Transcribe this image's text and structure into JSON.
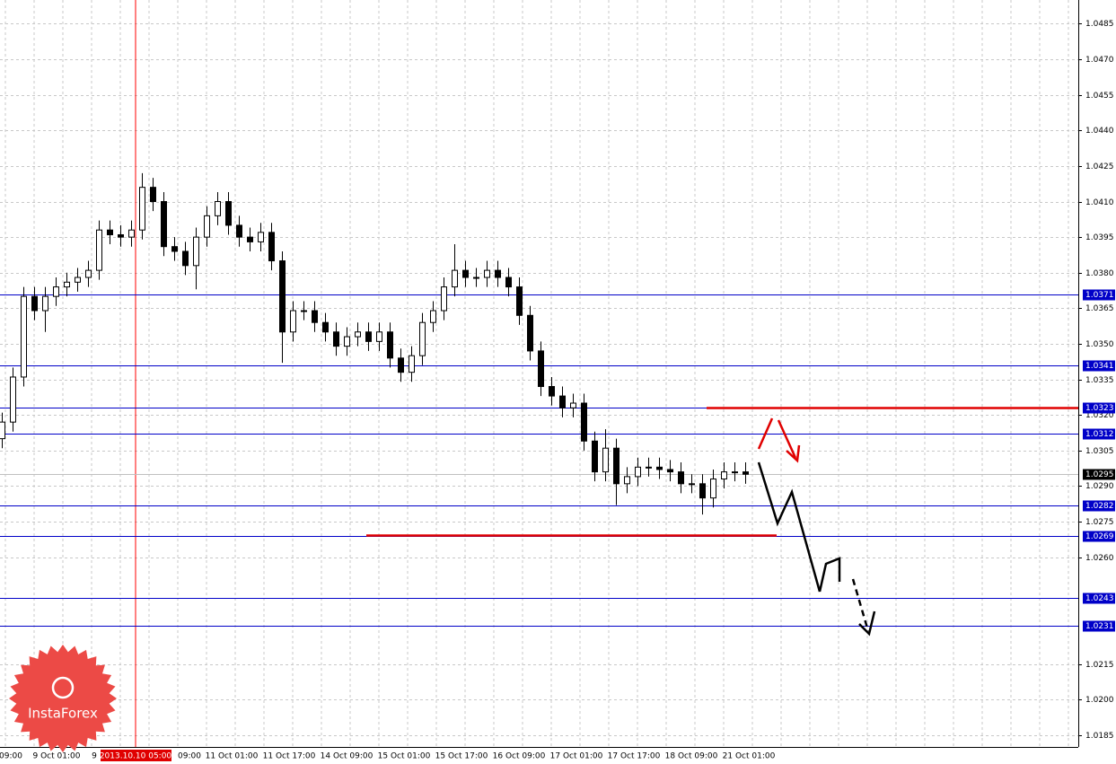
{
  "chart_data": {
    "type": "candlestick",
    "open": [
      1.031,
      1.0317,
      1.0336,
      1.037,
      1.0364,
      1.037,
      1.0374,
      1.0376,
      1.0378,
      1.0381,
      1.0398,
      1.0396,
      1.0395,
      1.0398,
      1.0416,
      1.041,
      1.0391,
      1.0389,
      1.0383,
      1.0395,
      1.0404,
      1.041,
      1.04,
      1.0395,
      1.0393,
      1.0397,
      1.0385,
      1.0355,
      1.0364,
      1.0364,
      1.0359,
      1.0355,
      1.0349,
      1.0353,
      1.0355,
      1.0351,
      1.0355,
      1.0344,
      1.0338,
      1.0345,
      1.0359,
      1.0364,
      1.0374,
      1.0381,
      1.0378,
      1.0378,
      1.0381,
      1.0378,
      1.0374,
      1.0362,
      1.0347,
      1.0332,
      1.0328,
      1.0323,
      1.0325,
      1.0309,
      1.0296,
      1.0306,
      1.0291,
      1.0294,
      1.0298,
      1.0298,
      1.0297,
      1.0296,
      1.0291,
      1.0291,
      1.0285,
      1.0293,
      1.0296,
      1.0296
    ],
    "high": [
      1.0321,
      1.034,
      1.0374,
      1.0374,
      1.0374,
      1.0378,
      1.038,
      1.0382,
      1.0385,
      1.0402,
      1.0402,
      1.04,
      1.0402,
      1.0422,
      1.042,
      1.0414,
      1.0395,
      1.0393,
      1.0399,
      1.0408,
      1.0414,
      1.0414,
      1.0404,
      1.0399,
      1.0401,
      1.0401,
      1.0389,
      1.0368,
      1.0368,
      1.0368,
      1.0363,
      1.0359,
      1.0357,
      1.0359,
      1.0359,
      1.0359,
      1.0359,
      1.0348,
      1.0349,
      1.0363,
      1.0368,
      1.0378,
      1.0392,
      1.0385,
      1.0382,
      1.0385,
      1.0385,
      1.0382,
      1.0378,
      1.0366,
      1.0351,
      1.0336,
      1.0332,
      1.0329,
      1.0329,
      1.0313,
      1.0314,
      1.031,
      1.0298,
      1.0302,
      1.0302,
      1.0302,
      1.0301,
      1.03,
      1.0295,
      1.0295,
      1.0297,
      1.03,
      1.03,
      1.03
    ],
    "low": [
      1.0306,
      1.0313,
      1.0332,
      1.036,
      1.0355,
      1.0366,
      1.037,
      1.0372,
      1.0374,
      1.0377,
      1.0392,
      1.0391,
      1.0391,
      1.0394,
      1.0406,
      1.0387,
      1.0385,
      1.0379,
      1.0373,
      1.0391,
      1.04,
      1.0396,
      1.0391,
      1.0389,
      1.0389,
      1.0381,
      1.0342,
      1.0351,
      1.036,
      1.0355,
      1.0351,
      1.0345,
      1.0345,
      1.0349,
      1.0347,
      1.0347,
      1.034,
      1.0334,
      1.0334,
      1.0341,
      1.0355,
      1.036,
      1.037,
      1.0374,
      1.0374,
      1.0374,
      1.0374,
      1.037,
      1.0358,
      1.0343,
      1.0328,
      1.0324,
      1.0319,
      1.0319,
      1.0305,
      1.0292,
      1.0292,
      1.0282,
      1.0287,
      1.029,
      1.0294,
      1.0293,
      1.0292,
      1.0287,
      1.0287,
      1.0278,
      1.0281,
      1.0289,
      1.0292,
      1.0291
    ],
    "close": [
      1.0317,
      1.0336,
      1.037,
      1.0364,
      1.037,
      1.0374,
      1.0376,
      1.0378,
      1.0381,
      1.0398,
      1.0396,
      1.0395,
      1.0398,
      1.0416,
      1.041,
      1.0391,
      1.0389,
      1.0383,
      1.0395,
      1.0404,
      1.041,
      1.04,
      1.0395,
      1.0393,
      1.0397,
      1.0385,
      1.0355,
      1.0364,
      1.0364,
      1.0359,
      1.0355,
      1.0349,
      1.0353,
      1.0355,
      1.0351,
      1.0355,
      1.0344,
      1.0338,
      1.0345,
      1.0359,
      1.0364,
      1.0374,
      1.0381,
      1.0378,
      1.0378,
      1.0381,
      1.0378,
      1.0374,
      1.0362,
      1.0347,
      1.0332,
      1.0328,
      1.0323,
      1.0325,
      1.0309,
      1.0296,
      1.0306,
      1.0291,
      1.0294,
      1.0298,
      1.0298,
      1.0297,
      1.0296,
      1.0291,
      1.0291,
      1.0285,
      1.0293,
      1.0296,
      1.0296,
      1.0295
    ],
    "bull_color": "#ffffff",
    "bear_color": "#000000",
    "ylim": [
      1.018,
      1.0495
    ],
    "yticks": [
      1.0185,
      {
        "value": 1.02,
        "label": "1.0200"
      },
      1.0215,
      {
        "value": 1.026,
        "label": "1.0260"
      },
      1.0275,
      {
        "value": 1.029,
        "label": "1.0290"
      },
      1.0305,
      {
        "value": 1.032,
        "label": "1.0320"
      },
      1.0335,
      {
        "value": 1.035,
        "label": "1.0350"
      },
      1.0365,
      {
        "value": 1.038,
        "label": "1.0380"
      },
      1.0395,
      {
        "value": 1.041,
        "label": "1.0410"
      },
      1.0425,
      {
        "value": 1.044,
        "label": "1.0440"
      },
      1.0455,
      {
        "value": 1.047,
        "label": "1.0470"
      },
      1.0485
    ],
    "grid": true,
    "levels": [
      1.0371,
      1.0341,
      1.0323,
      1.0312,
      1.0282,
      1.0269,
      1.0243,
      1.0231
    ],
    "level_color": "#0000c8",
    "last_price": 1.0295,
    "x_labels": [
      "09:00",
      "9 Oct 01:00",
      "9",
      "09:00",
      "11 Oct 01:00",
      "11 Oct 17:00",
      "14 Oct 09:00",
      "15 Oct 01:00",
      "15 Oct 17:00",
      "16 Oct 09:00",
      "17 Oct 01:00",
      "17 Oct 17:00",
      "18 Oct 09:00",
      "21 Oct 01:00"
    ],
    "cursor_label": "2013.10.10 05:00"
  },
  "logo": "InstaForex"
}
